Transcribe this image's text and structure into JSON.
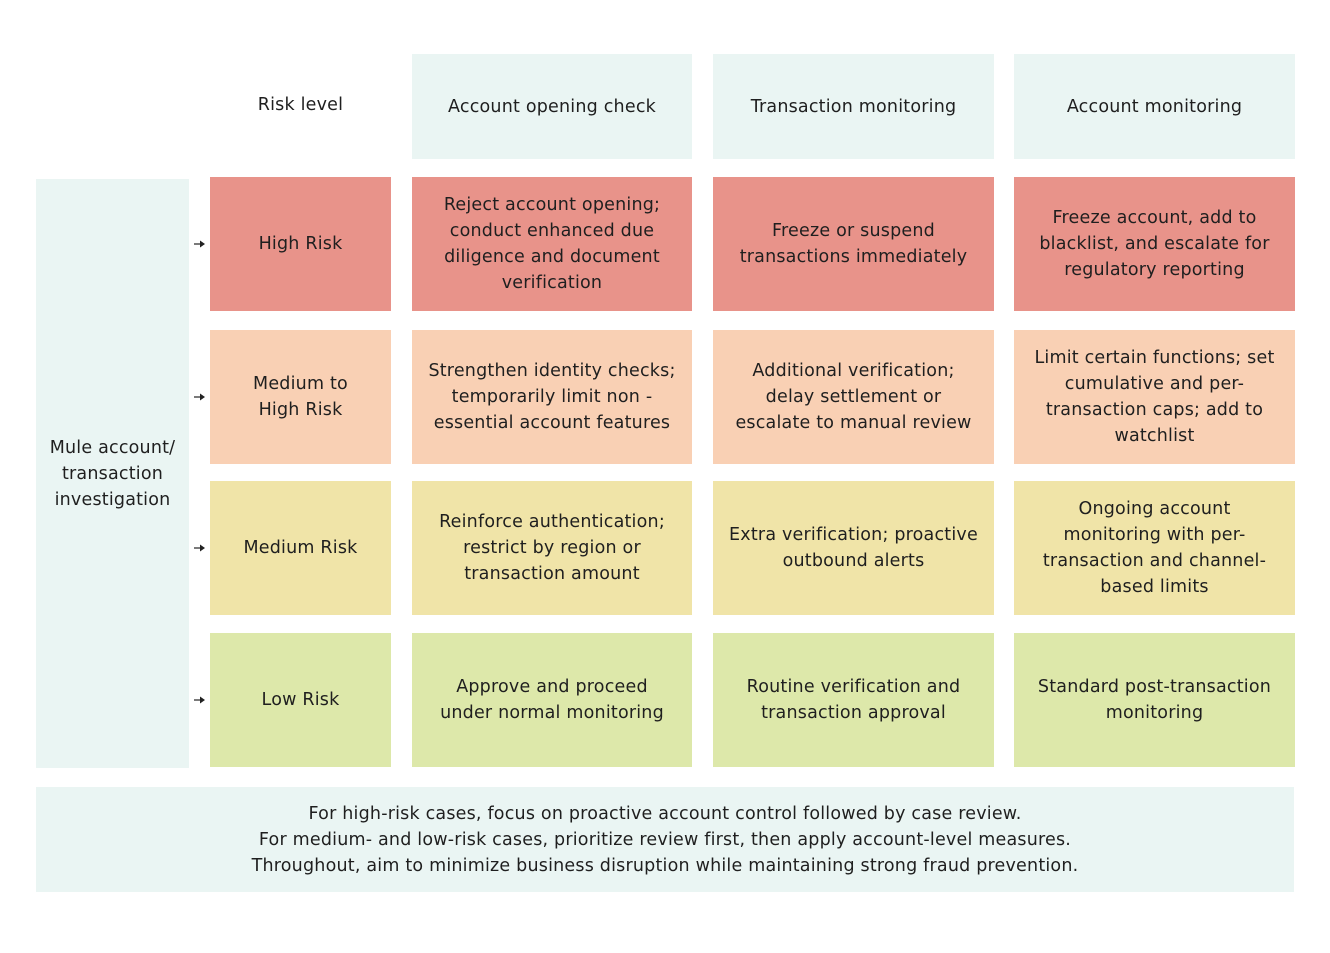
{
  "colors": {
    "head_bg": "#EAF5F3",
    "side_bg": "#EAF5F3",
    "note_bg": "#EAF5F3",
    "high_bg": "#E8938A",
    "medhigh_bg": "#F9D0B4",
    "med_bg": "#F0E4A8",
    "low_bg": "#DDE8AA"
  },
  "header": {
    "risk_level": "Risk level",
    "columns": [
      "Account opening check",
      "Transaction monitoring",
      "Account monitoring"
    ]
  },
  "side_label": "Mule account/ transaction investigation",
  "rows": [
    {
      "level": "High Risk",
      "cells": [
        "Reject account opening; conduct enhanced due diligence and document verification",
        "Freeze or suspend transactions immediately",
        "Freeze account, add to blacklist, and escalate for regulatory reporting"
      ]
    },
    {
      "level": "Medium to High Risk",
      "cells": [
        "Strengthen identity checks; temporarily limit non - essential account features",
        "Additional verification; delay settlement or escalate to manual review",
        "Limit certain functions; set cumulative and per-transaction caps; add to watchlist"
      ]
    },
    {
      "level": "Medium Risk",
      "cells": [
        "Reinforce authentication; restrict by region or transaction amount",
        "Extra verification; proactive outbound alerts",
        "Ongoing account monitoring with per-transaction and channel-based limits"
      ]
    },
    {
      "level": "Low Risk",
      "cells": [
        "Approve and proceed under normal monitoring",
        "Routine verification and transaction approval",
        "Standard post-transaction monitoring"
      ]
    }
  ],
  "note_lines": [
    "For high-risk cases, focus on proactive account control followed by case review.",
    "For medium- and low-risk cases, prioritize review first, then apply account-level measures.",
    "Throughout, aim to minimize business disruption while maintaining strong fraud prevention."
  ]
}
